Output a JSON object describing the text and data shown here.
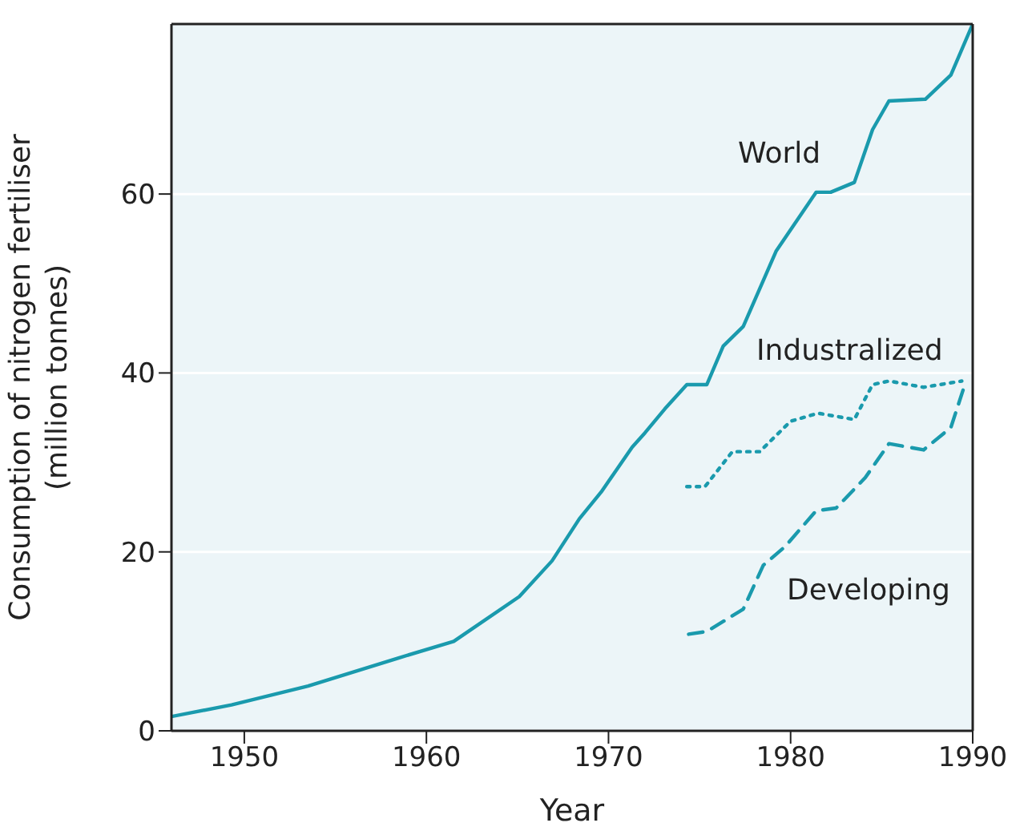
{
  "chart_data": {
    "type": "line",
    "xlabel": "Year",
    "ylabel": "Consumption of nitrogen fertiliser\n(million tonnes)",
    "xlim": [
      1946,
      1990
    ],
    "xticks": [
      1950,
      1960,
      1970,
      1980,
      1990
    ],
    "ylim": [
      0,
      79
    ],
    "yticks": [
      0,
      20,
      40,
      60
    ],
    "grid": "y",
    "legend": false,
    "marker": "none",
    "series": [
      {
        "name": "World",
        "color": "#1a9aad",
        "line_style": "solid",
        "x": [
          1946,
          1949.3,
          1953.5,
          1958.4,
          1961.5,
          1965.1,
          1966.9,
          1968.4,
          1969.6,
          1971.3,
          1972,
          1973.1,
          1974.3,
          1975.4,
          1976.3,
          1977.4,
          1979.2,
          1981.4,
          1982.2,
          1983.5,
          1984.5,
          1985.4,
          1987.4,
          1988.8,
          1990
        ],
        "values": [
          1.6,
          2.9,
          5,
          8.1,
          10,
          15,
          19,
          23.7,
          26.7,
          31.7,
          33.3,
          36,
          38.7,
          38.7,
          43,
          45.2,
          53.6,
          60.2,
          60.2,
          61.3,
          67.2,
          70.4,
          70.6,
          73.3,
          79
        ]
      },
      {
        "name": "Industralized",
        "color": "#1a9aad",
        "line_style": "dotted",
        "x": [
          1974.3,
          1975.3,
          1976.8,
          1978.3,
          1980,
          1981.5,
          1983.5,
          1984.5,
          1985.4,
          1987.3,
          1989.4
        ],
        "values": [
          27.3,
          27.3,
          31.2,
          31.2,
          34.6,
          35.5,
          34.8,
          38.7,
          39.1,
          38.4,
          39.1
        ]
      },
      {
        "name": "Developing",
        "color": "#1a9aad",
        "line_style": "dashed",
        "x": [
          1974.4,
          1975.4,
          1977.4,
          1978.5,
          1979.7,
          1981.4,
          1982.5,
          1984.1,
          1985.4,
          1987.3,
          1988.8,
          1989.6
        ],
        "values": [
          10.8,
          11.1,
          13.6,
          18.5,
          20.6,
          24.6,
          24.9,
          28.3,
          32.1,
          31.4,
          33.9,
          38.9
        ]
      }
    ]
  }
}
